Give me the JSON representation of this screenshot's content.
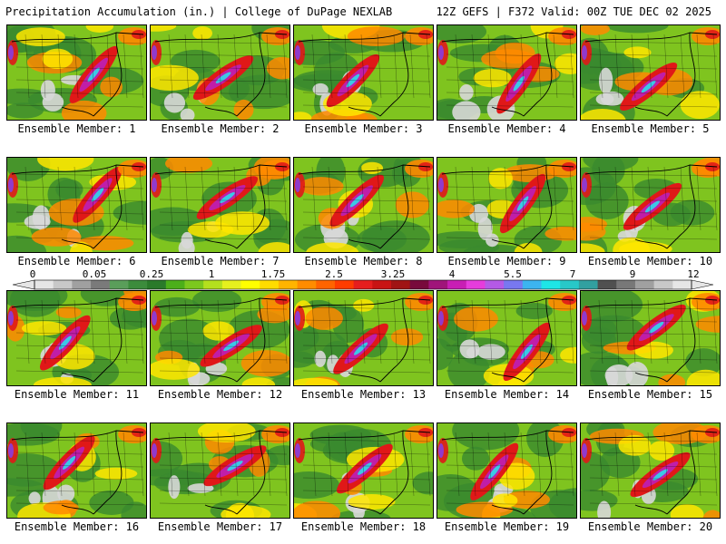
{
  "header": {
    "title": "Precipitation Accumulation (in.) | College of DuPage NEXLAB",
    "run_info": "12Z GEFS | F372 Valid: 00Z TUE DEC 02 2025"
  },
  "members": [
    {
      "label": "Ensemble Member: 1"
    },
    {
      "label": "Ensemble Member: 2"
    },
    {
      "label": "Ensemble Member: 3"
    },
    {
      "label": "Ensemble Member: 4"
    },
    {
      "label": "Ensemble Member: 5"
    },
    {
      "label": "Ensemble Member: 6"
    },
    {
      "label": "Ensemble Member: 7"
    },
    {
      "label": "Ensemble Member: 8"
    },
    {
      "label": "Ensemble Member: 9"
    },
    {
      "label": "Ensemble Member: 10"
    },
    {
      "label": "Ensemble Member: 11"
    },
    {
      "label": "Ensemble Member: 12"
    },
    {
      "label": "Ensemble Member: 13"
    },
    {
      "label": "Ensemble Member: 14"
    },
    {
      "label": "Ensemble Member: 15"
    },
    {
      "label": "Ensemble Member: 16"
    },
    {
      "label": "Ensemble Member: 17"
    },
    {
      "label": "Ensemble Member: 18"
    },
    {
      "label": "Ensemble Member: 19"
    },
    {
      "label": "Ensemble Member: 20"
    }
  ],
  "colorbar": {
    "labels": [
      "0",
      "0.05",
      "0.25",
      "1",
      "1.75",
      "2.5",
      "3.25",
      "4",
      "5.5",
      "7",
      "9",
      "12"
    ],
    "colors": [
      "#e6e6e6",
      "#c8c8c8",
      "#a0a0a0",
      "#7a7a7a",
      "#5a9e5a",
      "#3c8c3c",
      "#2a7a2a",
      "#4caf1a",
      "#7cc81e",
      "#b4e01e",
      "#e6f01e",
      "#ffff00",
      "#ffdc00",
      "#ffb400",
      "#ff8c00",
      "#ff6400",
      "#ff3c00",
      "#e61e1e",
      "#c81414",
      "#a01414",
      "#780a3c",
      "#a0147a",
      "#c81eb4",
      "#e63cdc",
      "#b45ae6",
      "#7878f0",
      "#3cb4f0",
      "#1ee6e6",
      "#28c8c8",
      "#32a0a0",
      "#505050",
      "#787878",
      "#a0a0a0",
      "#c8c8c8",
      "#e6e6e6"
    ]
  },
  "palette": {
    "land_low": "#3a8a2e",
    "land_mid": "#7fc41f",
    "yellow": "#ffe600",
    "orange": "#ff8a00",
    "red": "#e01818",
    "magenta": "#c01ea8",
    "purple": "#8a3ce0",
    "cyan": "#3cc8e6",
    "dry": "#d8d8d8"
  }
}
